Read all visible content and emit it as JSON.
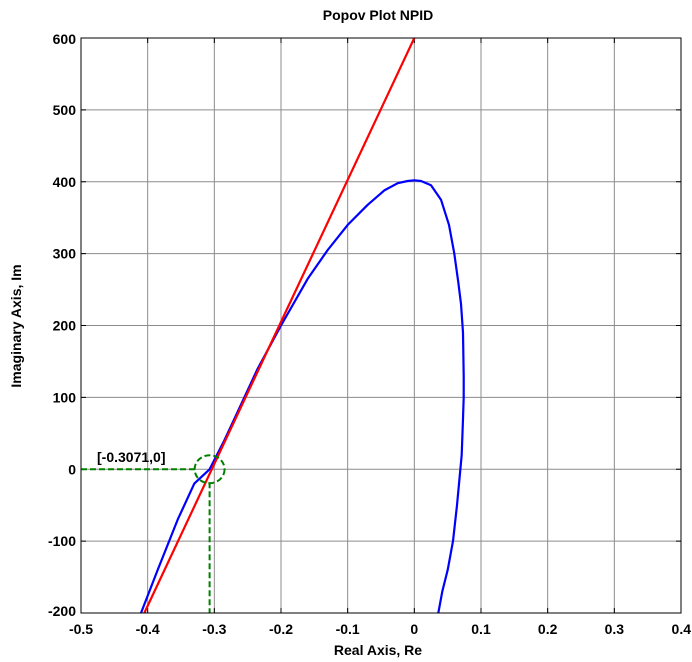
{
  "chart_data": {
    "type": "line",
    "title": "Popov Plot NPID",
    "xlabel": "Real Axis, Re",
    "ylabel": "Imaginary Axis, Im",
    "xlim": [
      -0.5,
      0.4
    ],
    "ylim": [
      -200,
      600
    ],
    "xticks": [
      -0.5,
      -0.4,
      -0.3,
      -0.2,
      -0.1,
      0,
      0.1,
      0.2,
      0.3,
      0.4
    ],
    "xtick_labels": [
      "-0.5",
      "-0.4",
      "-0.3",
      "-0.2",
      "-0.1",
      "0",
      "0.1",
      "0.2",
      "0.3",
      "0.4"
    ],
    "yticks": [
      -200,
      -100,
      0,
      100,
      200,
      300,
      400,
      500,
      600
    ],
    "ytick_labels": [
      "-200",
      "-100",
      "0",
      "100",
      "200",
      "300",
      "400",
      "500",
      "600"
    ],
    "grid": true,
    "series": [
      {
        "color": "#0000ff",
        "x": [
          -0.41,
          -0.385,
          -0.355,
          -0.33,
          -0.3071,
          -0.285,
          -0.26,
          -0.235,
          -0.2,
          -0.16,
          -0.13,
          -0.1,
          -0.07,
          -0.045,
          -0.025,
          -0.01,
          0.0,
          0.01,
          0.025,
          0.04,
          0.052,
          0.06,
          0.066,
          0.07,
          0.073,
          0.074,
          0.074,
          0.073,
          0.071,
          0.068,
          0.064,
          0.058,
          0.05,
          0.042,
          0.036
        ],
        "y": [
          -200,
          -140,
          -70,
          -20,
          0,
          40,
          90,
          140,
          200,
          265,
          305,
          340,
          368,
          388,
          398,
          401,
          402,
          401,
          395,
          375,
          340,
          300,
          260,
          230,
          190,
          130,
          100,
          70,
          20,
          -10,
          -50,
          -100,
          -140,
          -170,
          -200
        ]
      },
      {
        "color": "#ff0000",
        "x": [
          -0.405,
          0.0
        ],
        "y": [
          -200,
          600
        ]
      }
    ],
    "annotation": {
      "label": "[-0.3071,0]",
      "point": [
        -0.3071,
        0
      ],
      "color": "#008000"
    }
  }
}
